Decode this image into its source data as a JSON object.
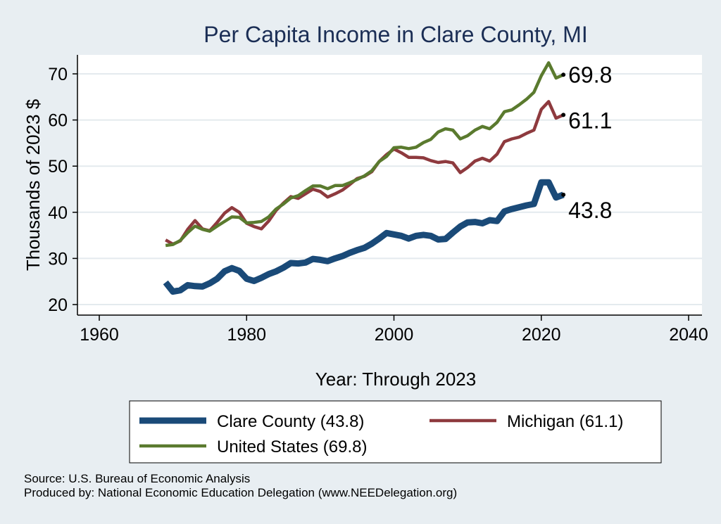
{
  "chart_data": {
    "type": "line",
    "title": "Per Capita Income in Clare County, MI",
    "xlabel": "Year: Through 2023",
    "ylabel": "Thousands of 2023 $",
    "xlim": [
      1960,
      2040
    ],
    "ylim": [
      20,
      72
    ],
    "xticks": [
      1960,
      1980,
      2000,
      2020,
      2040
    ],
    "yticks": [
      20,
      30,
      40,
      50,
      60,
      70
    ],
    "grid": true,
    "legend_position": "bottom",
    "x": [
      1969,
      1970,
      1971,
      1972,
      1973,
      1974,
      1975,
      1976,
      1977,
      1978,
      1979,
      1980,
      1981,
      1982,
      1983,
      1984,
      1985,
      1986,
      1987,
      1988,
      1989,
      1990,
      1991,
      1992,
      1993,
      1994,
      1995,
      1996,
      1997,
      1998,
      1999,
      2000,
      2001,
      2002,
      2003,
      2004,
      2005,
      2006,
      2007,
      2008,
      2009,
      2010,
      2011,
      2012,
      2013,
      2014,
      2015,
      2016,
      2017,
      2018,
      2019,
      2020,
      2021,
      2022,
      2023
    ],
    "series": [
      {
        "name": "Clare County (43.8)",
        "color": "#1a4a78",
        "end_label": "43.8",
        "values": [
          24.8,
          22.8,
          23.1,
          24.2,
          24.0,
          23.9,
          24.6,
          25.6,
          27.2,
          27.9,
          27.3,
          25.6,
          25.1,
          25.8,
          26.6,
          27.2,
          28.0,
          29.0,
          28.9,
          29.1,
          29.9,
          29.7,
          29.4,
          30.0,
          30.5,
          31.2,
          31.8,
          32.3,
          33.2,
          34.3,
          35.5,
          35.2,
          34.9,
          34.3,
          34.9,
          35.1,
          34.9,
          34.1,
          34.2,
          35.6,
          36.9,
          37.8,
          37.9,
          37.6,
          38.3,
          38.1,
          40.2,
          40.7,
          41.1,
          41.5,
          41.8,
          46.5,
          46.5,
          43.2,
          43.8
        ]
      },
      {
        "name": "Michigan (61.1)",
        "color": "#8e3a3e",
        "end_label": "61.1",
        "values": [
          34.0,
          33.1,
          33.8,
          36.3,
          38.2,
          36.4,
          36.0,
          37.8,
          39.8,
          41.0,
          40.0,
          37.6,
          36.9,
          36.4,
          38.1,
          40.4,
          42.0,
          43.4,
          43.0,
          44.0,
          45.0,
          44.5,
          43.3,
          44.0,
          44.8,
          46.0,
          47.3,
          47.8,
          48.8,
          51.0,
          52.5,
          53.7,
          52.9,
          51.9,
          51.9,
          51.8,
          51.2,
          50.8,
          51.0,
          50.7,
          48.6,
          49.7,
          51.1,
          51.7,
          51.1,
          52.6,
          55.3,
          55.9,
          56.3,
          57.1,
          57.8,
          62.3,
          64.0,
          60.4,
          61.1
        ]
      },
      {
        "name": "United States (69.8)",
        "color": "#5a7a2e",
        "end_label": "69.8",
        "values": [
          32.8,
          33.0,
          33.9,
          35.6,
          37.0,
          36.3,
          35.9,
          37.0,
          38.0,
          39.0,
          38.9,
          37.7,
          37.8,
          38.0,
          39.0,
          40.7,
          41.8,
          43.1,
          43.6,
          44.7,
          45.7,
          45.7,
          45.1,
          45.8,
          45.8,
          46.4,
          47.1,
          47.9,
          49.0,
          51.0,
          52.1,
          54.0,
          54.1,
          53.8,
          54.1,
          55.1,
          55.8,
          57.4,
          58.1,
          57.8,
          55.9,
          56.6,
          57.8,
          58.6,
          58.1,
          59.5,
          61.8,
          62.2,
          63.3,
          64.5,
          66.0,
          69.6,
          72.4,
          69.1,
          69.8
        ]
      }
    ]
  },
  "footer": {
    "source": "Source: U.S. Bureau of Economic Analysis",
    "producer": "Produced by: National Economic Education Delegation (www.NEEDelegation.org)"
  }
}
